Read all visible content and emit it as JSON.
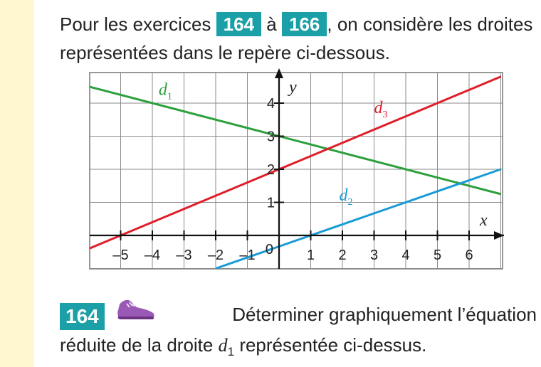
{
  "intro": {
    "before": "Pour les exercices",
    "badge_start": "164",
    "between": "à",
    "badge_end": "166",
    "after": ", on considère les droites",
    "line2": "représentées dans le repère ci-dessous."
  },
  "chart_data": {
    "type": "line",
    "xlim": [
      -6,
      7
    ],
    "ylim": [
      -1,
      5
    ],
    "grid": true,
    "xlabel": "x",
    "ylabel": "y",
    "x_ticks": [
      "–5",
      "–4",
      "–3",
      "–2",
      "–1",
      "1",
      "2",
      "3",
      "4",
      "5",
      "6"
    ],
    "y_ticks": [
      "1",
      "2",
      "3",
      "4"
    ],
    "origin_label": "0",
    "series": [
      {
        "name": "d",
        "sub": "1",
        "color": "#2ca03c",
        "x": [
          -6,
          7
        ],
        "y": [
          4.5,
          1.25
        ]
      },
      {
        "name": "d",
        "sub": "2",
        "color": "#1a9bd7",
        "x": [
          -2,
          7
        ],
        "y": [
          -1,
          2
        ]
      },
      {
        "name": "d",
        "sub": "3",
        "color": "#e01e2a",
        "x": [
          -6,
          7
        ],
        "y": [
          -0.4,
          4.8
        ]
      }
    ]
  },
  "exercise": {
    "number": "164",
    "icon": "running-shoe-icon",
    "text_line1": "Déterminer graphiquement l’équation",
    "text_line2_before": "réduite de la droite",
    "var": "d",
    "var_sub": "1",
    "text_line2_after": "représentée ci-dessus."
  }
}
